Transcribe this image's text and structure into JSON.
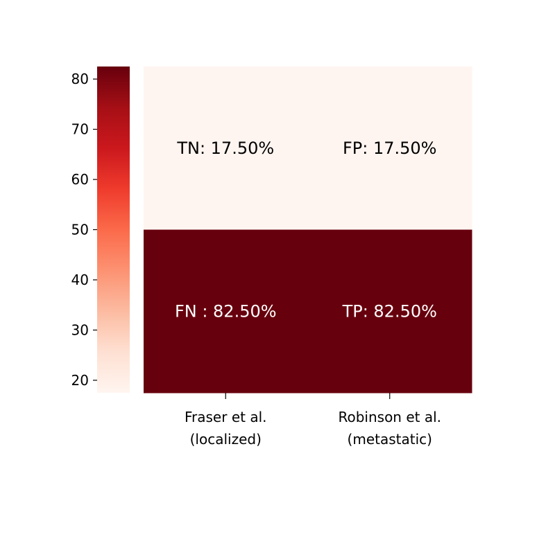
{
  "chart_data": {
    "type": "heatmap",
    "title": "",
    "xlabel": "",
    "ylabel": "",
    "x_categories": [
      [
        "Fraser et al.",
        "(localized)"
      ],
      [
        "Robinson et al.",
        "(metastatic)"
      ]
    ],
    "y_categories": [],
    "values": [
      [
        17.5,
        17.5
      ],
      [
        82.5,
        82.5
      ]
    ],
    "annotations": [
      [
        "TN: 17.50%",
        "FP: 17.50%"
      ],
      [
        "FN : 82.50%",
        "TP: 82.50%"
      ]
    ],
    "colormap": "Reds",
    "colorbar": {
      "position": "left",
      "range": [
        17.5,
        82.5
      ],
      "ticks": [
        20,
        30,
        40,
        50,
        60,
        70,
        80
      ]
    },
    "grid": false,
    "colors": {
      "low": "#fff5f0",
      "high": "#67000d",
      "text_on_light": "#000000",
      "text_on_dark": "#ffffff"
    }
  }
}
